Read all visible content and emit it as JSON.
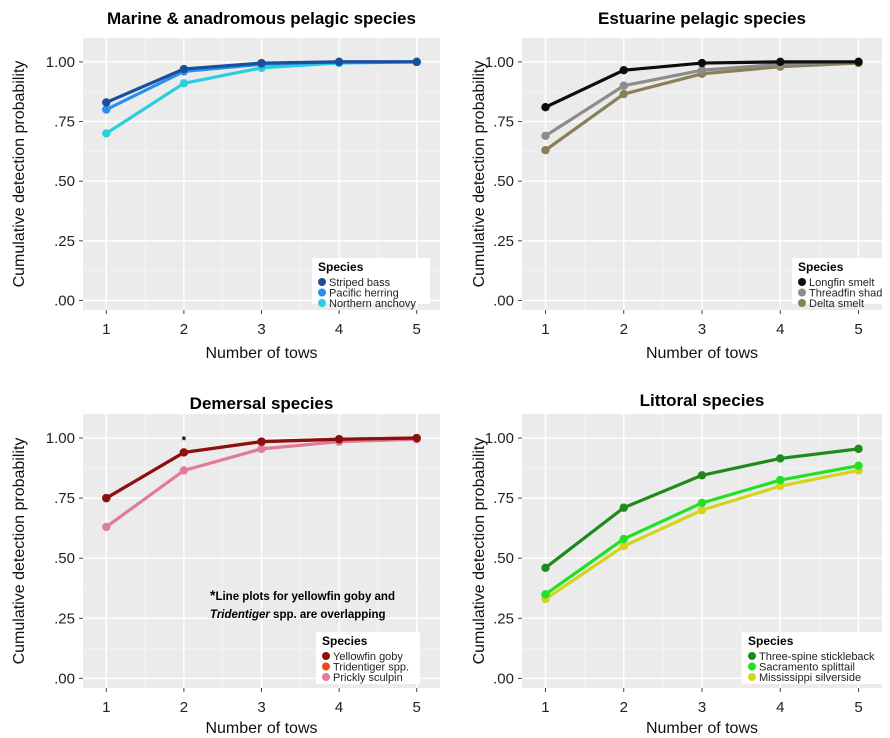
{
  "chart_data": [
    {
      "type": "line",
      "title": "Marine & anadromous pelagic species",
      "xlabel": "Number of tows",
      "ylabel": "Cumulative detection probability",
      "x": [
        1,
        2,
        3,
        4,
        5
      ],
      "xlim": [
        0.7,
        5.3
      ],
      "ylim": [
        -0.04,
        1.1
      ],
      "y_ticks": [
        0,
        0.25,
        0.5,
        0.75,
        1.0
      ],
      "y_tick_labels": [
        ".00",
        ".25",
        ".50",
        ".75",
        "1.00"
      ],
      "x_tick_labels": [
        "1",
        "2",
        "3",
        "4",
        "5"
      ],
      "grid": true,
      "background": "#ebebeb",
      "legend_title": "Species",
      "legend_position": "bottom-right",
      "series": [
        {
          "name": "Striped bass",
          "color": "#1a4f9c",
          "values": [
            0.83,
            0.97,
            0.995,
            1.0,
            1.0
          ]
        },
        {
          "name": "Pacific herring",
          "color": "#2b8ef0",
          "values": [
            0.8,
            0.96,
            0.99,
            1.0,
            1.0
          ]
        },
        {
          "name": "Northern anchovy",
          "color": "#29cfdc",
          "values": [
            0.7,
            0.91,
            0.975,
            0.995,
            1.0
          ]
        }
      ]
    },
    {
      "type": "line",
      "title": "Estuarine pelagic species",
      "xlabel": "Number of tows",
      "ylabel": "Cumulative detection probability",
      "x": [
        1,
        2,
        3,
        4,
        5
      ],
      "xlim": [
        0.7,
        5.3
      ],
      "ylim": [
        -0.04,
        1.1
      ],
      "y_ticks": [
        0,
        0.25,
        0.5,
        0.75,
        1.0
      ],
      "y_tick_labels": [
        ".00",
        ".25",
        ".50",
        ".75",
        "1.00"
      ],
      "x_tick_labels": [
        "1",
        "2",
        "3",
        "4",
        "5"
      ],
      "grid": true,
      "background": "#ebebeb",
      "legend_title": "Species",
      "legend_position": "bottom-right",
      "series": [
        {
          "name": "Longfin smelt",
          "color": "#0d0d0d",
          "values": [
            0.81,
            0.965,
            0.995,
            1.0,
            1.0
          ]
        },
        {
          "name": "Threadfin shad",
          "color": "#8c8c8c",
          "values": [
            0.69,
            0.9,
            0.965,
            0.99,
            1.0
          ]
        },
        {
          "name": "Delta smelt",
          "color": "#8a7f55",
          "values": [
            0.63,
            0.865,
            0.95,
            0.98,
            0.995
          ]
        }
      ]
    },
    {
      "type": "line",
      "title": "Demersal species",
      "xlabel": "Number of tows",
      "ylabel": "Cumulative detection probability",
      "x": [
        1,
        2,
        3,
        4,
        5
      ],
      "xlim": [
        0.7,
        5.3
      ],
      "ylim": [
        -0.04,
        1.1
      ],
      "y_ticks": [
        0,
        0.25,
        0.5,
        0.75,
        1.0
      ],
      "y_tick_labels": [
        ".00",
        ".25",
        ".50",
        ".75",
        "1.00"
      ],
      "x_tick_labels": [
        "1",
        "2",
        "3",
        "4",
        "5"
      ],
      "grid": true,
      "background": "#ebebeb",
      "legend_title": "Species",
      "legend_position": "bottom-right",
      "asterisk": {
        "x": 2,
        "y": 0.94,
        "text": "*"
      },
      "note_lines": [
        [
          {
            "t": "*",
            "bold": true
          },
          {
            "t": "Line plots for yellowfin goby and",
            "bold": true
          }
        ],
        [
          {
            "t": "Tridentiger",
            "bold": true,
            "italic": true
          },
          {
            "t": " spp. are overlapping",
            "bold": true
          }
        ]
      ],
      "series": [
        {
          "name": "Yellowfin goby",
          "color": "#8b1010",
          "values": [
            0.75,
            0.94,
            0.985,
            0.995,
            1.0
          ]
        },
        {
          "name": "Tridentiger spp.",
          "color": "#ea4a1e",
          "values": [
            0.75,
            0.94,
            0.985,
            0.995,
            1.0
          ]
        },
        {
          "name": "Prickly sculpin",
          "color": "#e07b9a",
          "values": [
            0.63,
            0.865,
            0.955,
            0.985,
            0.995
          ]
        }
      ]
    },
    {
      "type": "line",
      "title": "Littoral species",
      "xlabel": "Number of tows",
      "ylabel": "Cumulative detection probability",
      "x": [
        1,
        2,
        3,
        4,
        5
      ],
      "xlim": [
        0.7,
        5.3
      ],
      "ylim": [
        -0.04,
        1.1
      ],
      "y_ticks": [
        0,
        0.25,
        0.5,
        0.75,
        1.0
      ],
      "y_tick_labels": [
        ".00",
        ".25",
        ".50",
        ".75",
        "1.00"
      ],
      "x_tick_labels": [
        "1",
        "2",
        "3",
        "4",
        "5"
      ],
      "grid": true,
      "background": "#ebebeb",
      "legend_title": "Species",
      "legend_position": "bottom-right",
      "series": [
        {
          "name": "Three-spine stickleback",
          "color": "#1e8a1e",
          "values": [
            0.46,
            0.71,
            0.845,
            0.915,
            0.955
          ]
        },
        {
          "name": "Sacramento splittail",
          "color": "#22e022",
          "values": [
            0.35,
            0.58,
            0.73,
            0.825,
            0.885
          ]
        },
        {
          "name": "Mississippi silverside",
          "color": "#d4d41e",
          "values": [
            0.33,
            0.55,
            0.7,
            0.8,
            0.865
          ]
        }
      ]
    }
  ]
}
